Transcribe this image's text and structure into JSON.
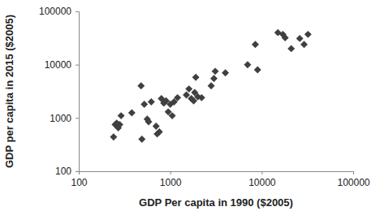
{
  "chart_data": {
    "type": "scatter",
    "x_label": "GDP Per capita in 1990 ($2005)",
    "y_label": "GDP per capita in 2015 ($2005)",
    "x": [
      240,
      250,
      260,
      270,
      280,
      290,
      380,
      480,
      490,
      520,
      560,
      580,
      620,
      700,
      720,
      760,
      800,
      850,
      900,
      950,
      1000,
      1050,
      1100,
      1200,
      1500,
      1600,
      1700,
      1800,
      1850,
      1900,
      2000,
      2200,
      2800,
      3000,
      3100,
      4000,
      7000,
      8500,
      9000,
      15000,
      17000,
      18000,
      21000,
      26000,
      29000,
      32000
    ],
    "values": [
      440,
      750,
      800,
      650,
      750,
      1100,
      1250,
      4000,
      400,
      1800,
      950,
      850,
      2000,
      700,
      500,
      550,
      2300,
      1900,
      2100,
      1300,
      1800,
      1100,
      2000,
      2400,
      2700,
      3500,
      2300,
      2100,
      3000,
      5800,
      2500,
      2400,
      4000,
      5500,
      7500,
      7000,
      10000,
      24000,
      8000,
      40000,
      37000,
      32000,
      20000,
      31000,
      24000,
      37000
    ],
    "color": "#404040",
    "marker": "diamond",
    "log": true,
    "grid": false,
    "xlim": [
      100,
      100000
    ],
    "xticks": [
      100,
      1000,
      10000,
      100000
    ],
    "ylim": [
      100,
      100000
    ],
    "yticks": [
      100,
      1000,
      10000,
      100000
    ]
  }
}
